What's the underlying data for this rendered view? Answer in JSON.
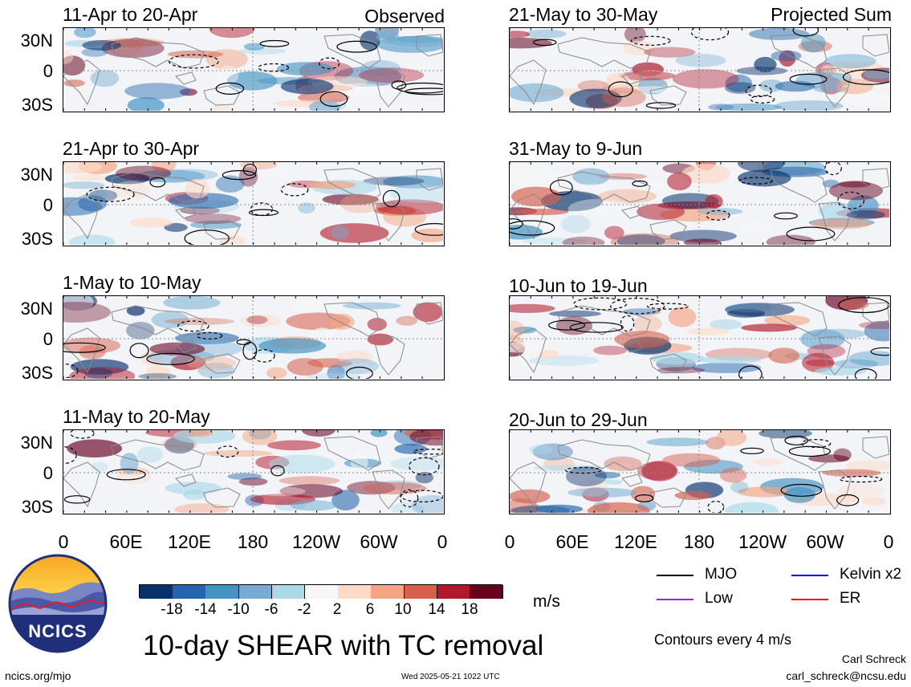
{
  "panels": {
    "left": [
      {
        "title": "11-Apr to 20-Apr",
        "tag": "Observed"
      },
      {
        "title": "21-Apr to 30-Apr",
        "tag": ""
      },
      {
        "title": "1-May to 10-May",
        "tag": ""
      },
      {
        "title": "11-May to 20-May",
        "tag": ""
      }
    ],
    "right": [
      {
        "title": "21-May to 30-May",
        "tag": "Projected Sum"
      },
      {
        "title": "31-May to 9-Jun",
        "tag": ""
      },
      {
        "title": "10-Jun to 19-Jun",
        "tag": ""
      },
      {
        "title": "20-Jun to 29-Jun",
        "tag": ""
      }
    ]
  },
  "lat_labels": [
    "30N",
    "0",
    "30S"
  ],
  "lon_labels": [
    "0",
    "60E",
    "120E",
    "180",
    "120W",
    "60W",
    "0"
  ],
  "colorbar": {
    "ticks": [
      "-18",
      "-14",
      "-10",
      "-6",
      "-2",
      "2",
      "6",
      "10",
      "14",
      "18"
    ],
    "colors": [
      "#08306b",
      "#2166ac",
      "#4393c3",
      "#74add1",
      "#abd9e9",
      "#f7f7f7",
      "#fddbc7",
      "#f4a582",
      "#d6604d",
      "#b2182b",
      "#67001f"
    ],
    "unit": "m/s"
  },
  "legend": {
    "items": [
      {
        "label": "MJO",
        "color": "#000000"
      },
      {
        "label": "Kelvin x2",
        "color": "#0000ff"
      },
      {
        "label": "Low",
        "color": "#a020f0"
      },
      {
        "label": "ER",
        "color": "#ff0000"
      }
    ],
    "contour_note": "Contours every 4 m/s"
  },
  "logo_text": "NCICS",
  "main_title": "10-day SHEAR with TC removal",
  "footer": {
    "left": "ncics.org/mjo",
    "center": "Wed 2025-05-21 1022 UTC",
    "author": "Carl Schreck",
    "email": "carl_schreck@ncsu.edu"
  }
}
